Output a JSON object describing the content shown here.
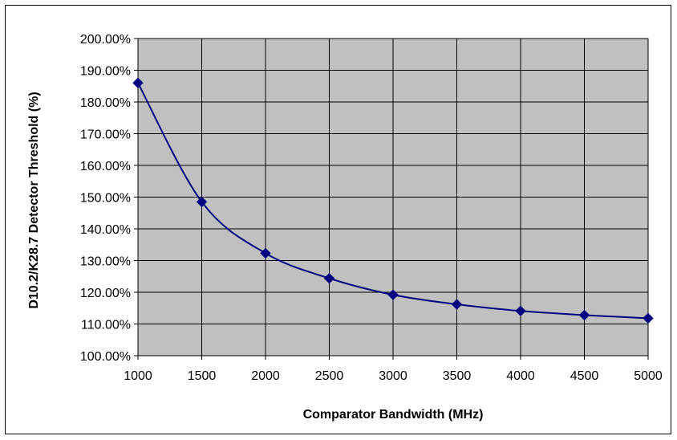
{
  "chart_data": {
    "type": "line",
    "title": "",
    "xlabel": "Comparator Bandwidth (MHz)",
    "ylabel": "D10.2/K28.7 Detector Threshold (%)",
    "x": [
      1000,
      1500,
      2000,
      2500,
      3000,
      3500,
      4000,
      4500,
      5000
    ],
    "series": [
      {
        "values": [
          186.0,
          148.5,
          132.3,
          124.4,
          119.2,
          116.2,
          114.1,
          112.8,
          111.8
        ],
        "color": "#000080",
        "marker": "diamond",
        "smooth": true
      }
    ],
    "xlim": [
      1000,
      5000
    ],
    "ylim": [
      100,
      200
    ],
    "x_ticks": [
      1000,
      1500,
      2000,
      2500,
      3000,
      3500,
      4000,
      4500,
      5000
    ],
    "x_tick_labels": [
      "1000",
      "1500",
      "2000",
      "2500",
      "3000",
      "3500",
      "4000",
      "4500",
      "5000"
    ],
    "y_ticks": [
      100,
      110,
      120,
      130,
      140,
      150,
      160,
      170,
      180,
      190,
      200
    ],
    "y_tick_labels": [
      "100.00%",
      "110.00%",
      "120.00%",
      "130.00%",
      "140.00%",
      "150.00%",
      "160.00%",
      "170.00%",
      "180.00%",
      "190.00%",
      "200.00%"
    ],
    "grid": true,
    "legend": "none",
    "plot_background": "#c0c0c0",
    "grid_color": "#000000"
  }
}
